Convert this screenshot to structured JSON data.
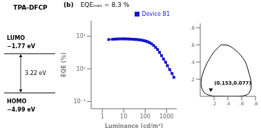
{
  "chart_data": [
    {
      "type": "energy_levels",
      "title": "TPA-DFCP",
      "annotations": [
        "LUMO",
        "−1.77 eV",
        "3.22 eV",
        "HOMO",
        "−4.99 eV"
      ]
    },
    {
      "type": "line",
      "title": "(b)",
      "annotations": [
        "EQEₘₐₓ = 8.3 %"
      ],
      "xlabel": "Luminance (cd/m²)",
      "ylabel": "EQE (%)",
      "log": true,
      "grid": false,
      "legend": "upper right",
      "xlim": [
        0.3,
        3000
      ],
      "xticks": [
        1,
        10,
        100,
        1000
      ],
      "ylim": [
        0.06,
        30
      ],
      "yticks": [
        {
          "value": 0.1,
          "label": "10⁻¹"
        },
        {
          "value": 1,
          "label": "10⁰"
        },
        {
          "value": 10,
          "label": "10¹"
        }
      ],
      "x": [
        2,
        3,
        4,
        5,
        6,
        8,
        10,
        12,
        15,
        18,
        22,
        27,
        33,
        40,
        50,
        60,
        75,
        90,
        110,
        130,
        160,
        200,
        250,
        310,
        380,
        470,
        580,
        720,
        900,
        1100,
        1400,
        1800,
        2200
      ],
      "series": [
        {
          "name": "Device B1",
          "color": "#1515cc",
          "marker": "square",
          "values": [
            7.9,
            8.05,
            8.15,
            8.22,
            8.27,
            8.3,
            8.3,
            8.28,
            8.24,
            8.18,
            8.12,
            8.06,
            8.0,
            7.92,
            7.8,
            7.68,
            7.5,
            7.3,
            7.05,
            6.75,
            6.35,
            5.85,
            5.2,
            4.55,
            3.9,
            3.2,
            2.55,
            2.0,
            1.6,
            1.25,
            0.95,
            0.72,
            0.55
          ]
        }
      ]
    },
    {
      "type": "cie",
      "xlim": [
        0,
        0.8
      ],
      "ylim": [
        0,
        0.85
      ],
      "xticks": [
        {
          "value": 0.2,
          "label": ".2"
        },
        {
          "value": 0.4,
          "label": ".4"
        },
        {
          "value": 0.6,
          "label": ".6"
        },
        {
          "value": 0.8,
          "label": ".8"
        }
      ],
      "yticks": [
        {
          "value": 0.2,
          "label": ".2"
        },
        {
          "value": 0.4,
          "label": ".4"
        },
        {
          "value": 0.6,
          "label": ".6"
        },
        {
          "value": 0.8,
          "label": ".8"
        }
      ],
      "series": [
        {
          "type": "line",
          "color": "#000000",
          "x": [
            0.1741,
            0.1,
            0.05,
            0.02,
            0.01,
            0.02,
            0.05,
            0.1,
            0.15,
            0.2,
            0.25,
            0.3,
            0.35,
            0.4,
            0.45,
            0.5,
            0.55,
            0.6,
            0.645,
            0.67,
            0.69,
            0.71,
            0.73,
            0.74,
            0.735,
            0.71,
            0.67,
            0.61,
            0.55,
            0.47,
            0.38,
            0.3,
            0.22,
            0.16,
            0.1741
          ],
          "values": [
            0.005,
            0.02,
            0.05,
            0.1,
            0.15,
            0.22,
            0.3,
            0.39,
            0.46,
            0.52,
            0.56,
            0.6,
            0.6,
            0.595,
            0.575,
            0.545,
            0.51,
            0.465,
            0.415,
            0.37,
            0.315,
            0.26,
            0.2,
            0.14,
            0.09,
            0.04,
            0.015,
            0.005,
            0.002,
            0.001,
            0.001,
            0.002,
            0.003,
            0.004,
            0.005
          ]
        },
        {
          "type": "scatter",
          "color": "#000000",
          "marker": "triangle_down",
          "x": [
            0.153
          ],
          "values": [
            0.077
          ]
        }
      ],
      "annotations": [
        {
          "text": "(0.153,0.077)",
          "x": 0.153,
          "y": 0.077
        }
      ]
    }
  ]
}
